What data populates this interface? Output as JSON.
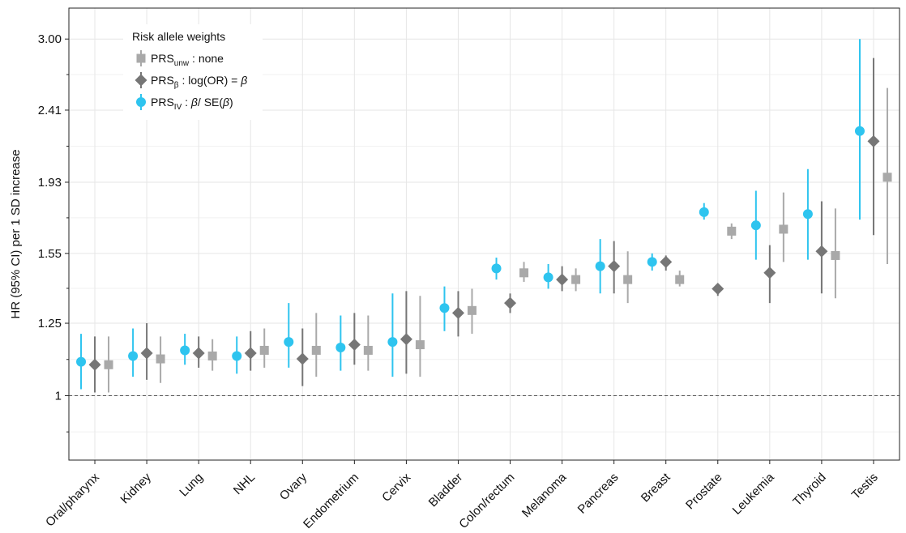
{
  "colors": {
    "unw": "#a9a9a9",
    "beta": "#767676",
    "iv": "#2ec4ef",
    "grid": "#e6e6e6",
    "axis": "#222222",
    "reference": "#555555"
  },
  "chart_data": {
    "type": "scatter",
    "title": "",
    "xlabel": "",
    "ylabel": "HR (95% CI) per 1 SD increase",
    "y_scale": "log",
    "ylim": [
      0.82,
      3.3
    ],
    "y_ticks": [
      1,
      1.25,
      1.55,
      1.93,
      2.41,
      3.0
    ],
    "y_tick_labels": [
      "1",
      "1.25",
      "1.55",
      "1.93",
      "2.41",
      "3.00"
    ],
    "reference_line": 1,
    "grid": true,
    "categories": [
      "Oral/pharynx",
      "Kidney",
      "Lung",
      "NHL",
      "Ovary",
      "Endometrium",
      "Cervix",
      "Bladder",
      "Colon/rectum",
      "Melanoma",
      "Pancreas",
      "Breast",
      "Prostate",
      "Leukemia",
      "Thyroid",
      "Testis"
    ],
    "legend": {
      "title": "Risk allele weights",
      "position": "top-left",
      "entries": [
        {
          "series": "iv",
          "main": "PRS",
          "sub": "IV",
          "desc_prefix": " : ",
          "desc_italic": "β",
          "desc_mid": "/ SE(",
          "desc_italic2": "β",
          "desc_end": ")"
        },
        {
          "series": "beta",
          "main": "PRS",
          "sub": "β",
          "desc_prefix": " : log(OR) = ",
          "desc_italic": "β",
          "desc_mid": "",
          "desc_italic2": "",
          "desc_end": ""
        },
        {
          "series": "unw",
          "main": "PRS",
          "sub": "unw",
          "desc_prefix": " : none",
          "desc_italic": "",
          "desc_mid": "",
          "desc_italic2": "",
          "desc_end": ""
        }
      ]
    },
    "series": [
      {
        "key": "iv",
        "marker": "circle",
        "hr": [
          1.11,
          1.13,
          1.15,
          1.13,
          1.18,
          1.16,
          1.18,
          1.31,
          1.48,
          1.44,
          1.49,
          1.51,
          1.76,
          1.69,
          1.75,
          2.26
        ],
        "lo": [
          1.02,
          1.06,
          1.1,
          1.07,
          1.09,
          1.08,
          1.06,
          1.22,
          1.43,
          1.39,
          1.37,
          1.47,
          1.72,
          1.52,
          1.52,
          1.72
        ],
        "hi": [
          1.21,
          1.23,
          1.21,
          1.2,
          1.33,
          1.28,
          1.37,
          1.4,
          1.53,
          1.5,
          1.62,
          1.55,
          1.81,
          1.88,
          2.01,
          3.0
        ]
      },
      {
        "key": "beta",
        "marker": "diamond",
        "hr": [
          1.1,
          1.14,
          1.14,
          1.14,
          1.12,
          1.17,
          1.19,
          1.29,
          1.33,
          1.43,
          1.49,
          1.51,
          1.39,
          1.46,
          1.56,
          2.19
        ],
        "lo": [
          1.01,
          1.05,
          1.09,
          1.08,
          1.03,
          1.1,
          1.07,
          1.2,
          1.29,
          1.38,
          1.37,
          1.47,
          1.36,
          1.33,
          1.37,
          1.64
        ],
        "hi": [
          1.2,
          1.25,
          1.2,
          1.22,
          1.23,
          1.29,
          1.38,
          1.38,
          1.37,
          1.49,
          1.61,
          1.54,
          1.41,
          1.59,
          1.82,
          2.83
        ]
      },
      {
        "key": "unw",
        "marker": "square",
        "hr": [
          1.1,
          1.12,
          1.13,
          1.15,
          1.15,
          1.15,
          1.17,
          1.3,
          1.46,
          1.43,
          1.43,
          1.43,
          1.66,
          1.67,
          1.54,
          1.96
        ],
        "lo": [
          1.01,
          1.04,
          1.08,
          1.09,
          1.06,
          1.08,
          1.06,
          1.21,
          1.42,
          1.38,
          1.33,
          1.4,
          1.62,
          1.51,
          1.35,
          1.5
        ],
        "hi": [
          1.2,
          1.2,
          1.19,
          1.23,
          1.29,
          1.28,
          1.36,
          1.39,
          1.51,
          1.48,
          1.56,
          1.47,
          1.7,
          1.87,
          1.78,
          2.58
        ]
      }
    ]
  }
}
